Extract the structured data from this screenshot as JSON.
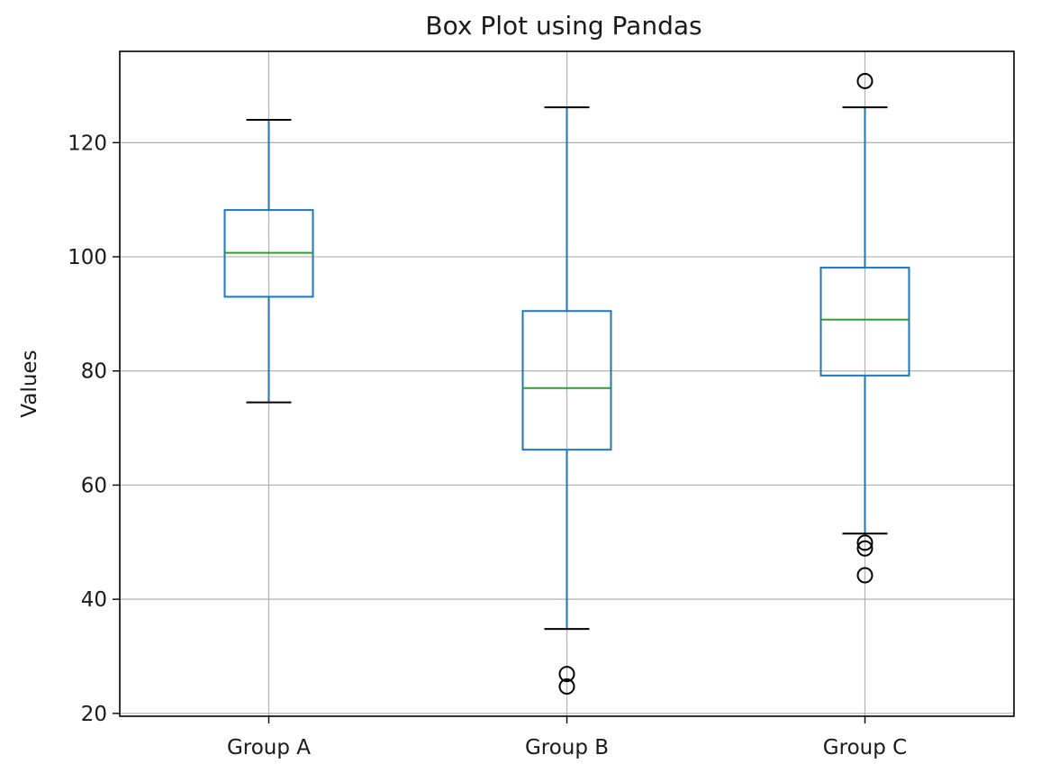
{
  "chart_data": {
    "type": "box",
    "title": "Box Plot using Pandas",
    "xlabel": "",
    "ylabel": "Values",
    "ylim": [
      19.5,
      136
    ],
    "yticks": [
      20,
      40,
      60,
      80,
      100,
      120
    ],
    "grid": true,
    "categories": [
      "Group A",
      "Group B",
      "Group C"
    ],
    "boxes": [
      {
        "label": "Group A",
        "whisker_low": 74.5,
        "q1": 93.0,
        "median": 100.7,
        "q3": 108.2,
        "whisker_high": 124.0,
        "outliers": []
      },
      {
        "label": "Group B",
        "whisker_low": 34.8,
        "q1": 66.2,
        "median": 77.0,
        "q3": 90.5,
        "whisker_high": 126.2,
        "outliers": [
          26.9,
          24.7
        ]
      },
      {
        "label": "Group C",
        "whisker_low": 51.5,
        "q1": 79.2,
        "median": 89.0,
        "q3": 98.1,
        "whisker_high": 126.2,
        "outliers": [
          130.8,
          49.9,
          48.9,
          44.2
        ]
      }
    ],
    "colors": {
      "box": "#1f77b4",
      "median": "#2ca02c",
      "whisker_cap": "#000000",
      "outlier": "#000000",
      "grid": "#b0b0b0"
    }
  }
}
